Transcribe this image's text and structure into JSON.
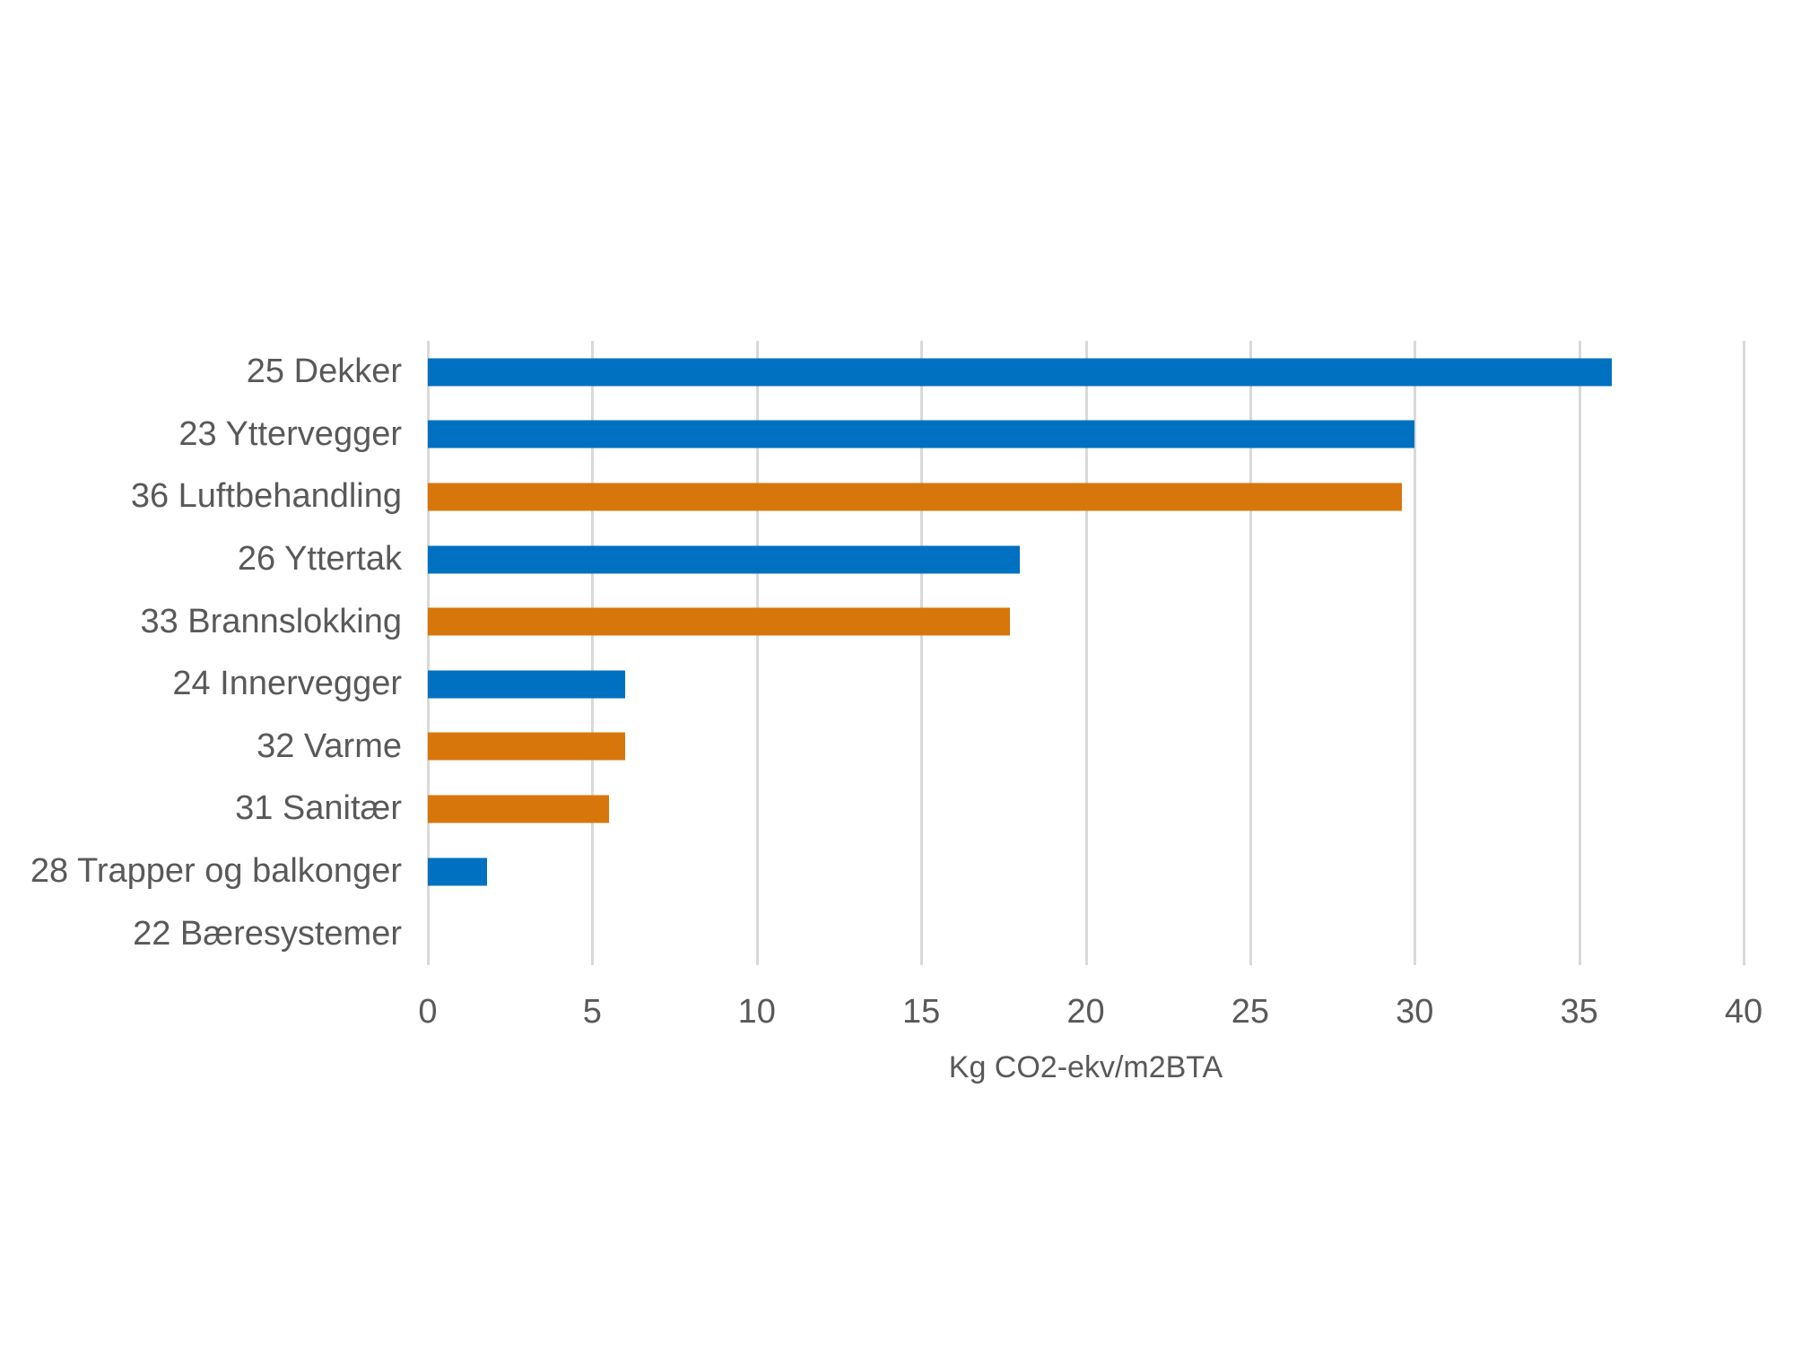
{
  "colors": {
    "bar_blue": "#0071C1",
    "bar_orange": "#D7760B",
    "gridline": "#D9D9D9",
    "axis_text": "#595959",
    "background": "#FFFFFF"
  },
  "chart_data": {
    "type": "bar",
    "orientation": "horizontal",
    "title": "",
    "xlabel": "Kg CO2-ekv/m2BTA",
    "ylabel": "",
    "xlim": [
      0,
      40
    ],
    "xticks": [
      0,
      5,
      10,
      15,
      20,
      25,
      30,
      35,
      40
    ],
    "grid": true,
    "legend": false,
    "categories": [
      "25 Dekker",
      "23 Yttervegger",
      "36 Luftbehandling",
      "26 Yttertak",
      "33 Brannslokking",
      "24 Innervegger",
      "32 Varme",
      "31 Sanitær",
      "28 Trapper og balkonger",
      "22 Bæresystemer"
    ],
    "values": [
      36,
      30,
      29.6,
      18,
      17.7,
      6,
      6,
      5.5,
      1.8,
      0
    ],
    "bar_colors": [
      "#0071C1",
      "#0071C1",
      "#D7760B",
      "#0071C1",
      "#D7760B",
      "#0071C1",
      "#D7760B",
      "#D7760B",
      "#0071C1",
      "#0071C1"
    ]
  }
}
